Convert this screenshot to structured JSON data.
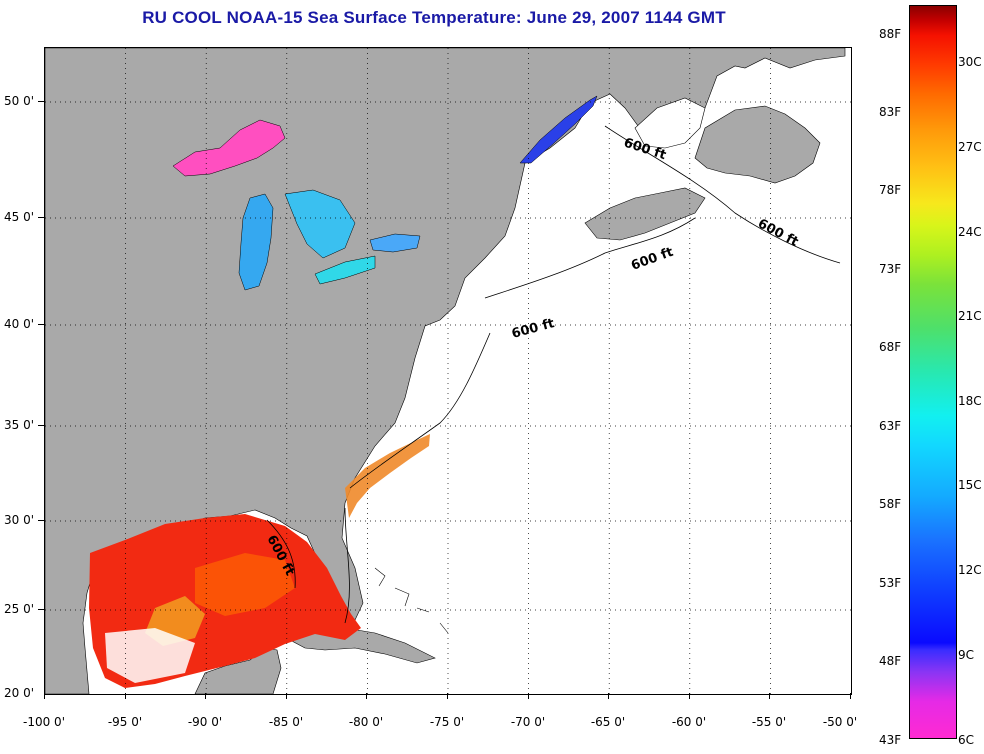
{
  "title": "RU COOL  NOAA-15  Sea Surface Temperature:  June 29, 2007 1144 GMT",
  "map": {
    "x_ticks": [
      "-100 0'",
      "-95 0'",
      "-90 0'",
      "-85 0'",
      "-80 0'",
      "-75 0'",
      "-70 0'",
      "-65 0'",
      "-60 0'",
      "-55 0'",
      "-50 0'"
    ],
    "y_ticks": [
      "50 0'",
      "45 0'",
      "40 0'",
      "35 0'",
      "30 0'",
      "25 0'",
      "20 0'"
    ],
    "contour_label": "600 ft",
    "colors": {
      "land": "#a9a9a9",
      "ocean_no_data": "#ffffff",
      "gulf_sst": "#f22a12",
      "gulf_stream_sst": "#f08a2a",
      "lake_superior": "#ff4fc0",
      "lakes": "#35a8f0",
      "st_lawrence": "#2a40e8",
      "frame": "#000000"
    }
  },
  "colorbar": {
    "fahrenheit": [
      "88F",
      "83F",
      "78F",
      "73F",
      "68F",
      "63F",
      "58F",
      "53F",
      "48F",
      "43F"
    ],
    "celsius": [
      "30C",
      "27C",
      "24C",
      "21C",
      "18C",
      "15C",
      "12C",
      "9C",
      "6C"
    ]
  }
}
